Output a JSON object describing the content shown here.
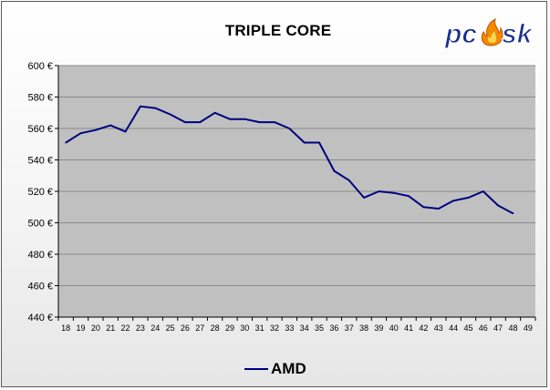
{
  "title": "TRIPLE CORE",
  "logo": {
    "text": "pcosk",
    "icon": "flame-logo"
  },
  "colors": {
    "line": "#000080",
    "plot_bg": "#c0c0c0",
    "grid": "#8a8a8a"
  },
  "chart_data": {
    "type": "line",
    "title": "TRIPLE CORE",
    "xlabel": "",
    "ylabel": "",
    "x_ticks": [
      "18",
      "19",
      "20",
      "21",
      "22",
      "23",
      "24",
      "25",
      "26",
      "27",
      "28",
      "29",
      "30",
      "31",
      "32",
      "33",
      "34",
      "35",
      "36",
      "37",
      "38",
      "39",
      "40",
      "41",
      "42",
      "43",
      "44",
      "45",
      "46",
      "47",
      "48",
      "49"
    ],
    "y_ticks": [
      "440 €",
      "460 €",
      "480 €",
      "500 €",
      "520 €",
      "540 €",
      "560 €",
      "580 €",
      "600 €"
    ],
    "ylim": [
      440,
      600
    ],
    "grid": true,
    "legend_position": "bottom",
    "series": [
      {
        "name": "AMD",
        "color": "#000080",
        "x": [
          "18",
          "19",
          "20",
          "21",
          "22",
          "23",
          "24",
          "25",
          "26",
          "27",
          "28",
          "29",
          "30",
          "31",
          "32",
          "33",
          "34",
          "35",
          "36",
          "37",
          "38",
          "39",
          "40",
          "41",
          "42",
          "43",
          "44",
          "45",
          "46",
          "47",
          "48"
        ],
        "values": [
          551,
          557,
          559,
          562,
          558,
          574,
          573,
          569,
          564,
          564,
          570,
          566,
          566,
          564,
          564,
          560,
          551,
          551,
          533,
          527,
          516,
          520,
          519,
          517,
          510,
          509,
          514,
          516,
          520,
          511,
          506
        ]
      }
    ]
  }
}
